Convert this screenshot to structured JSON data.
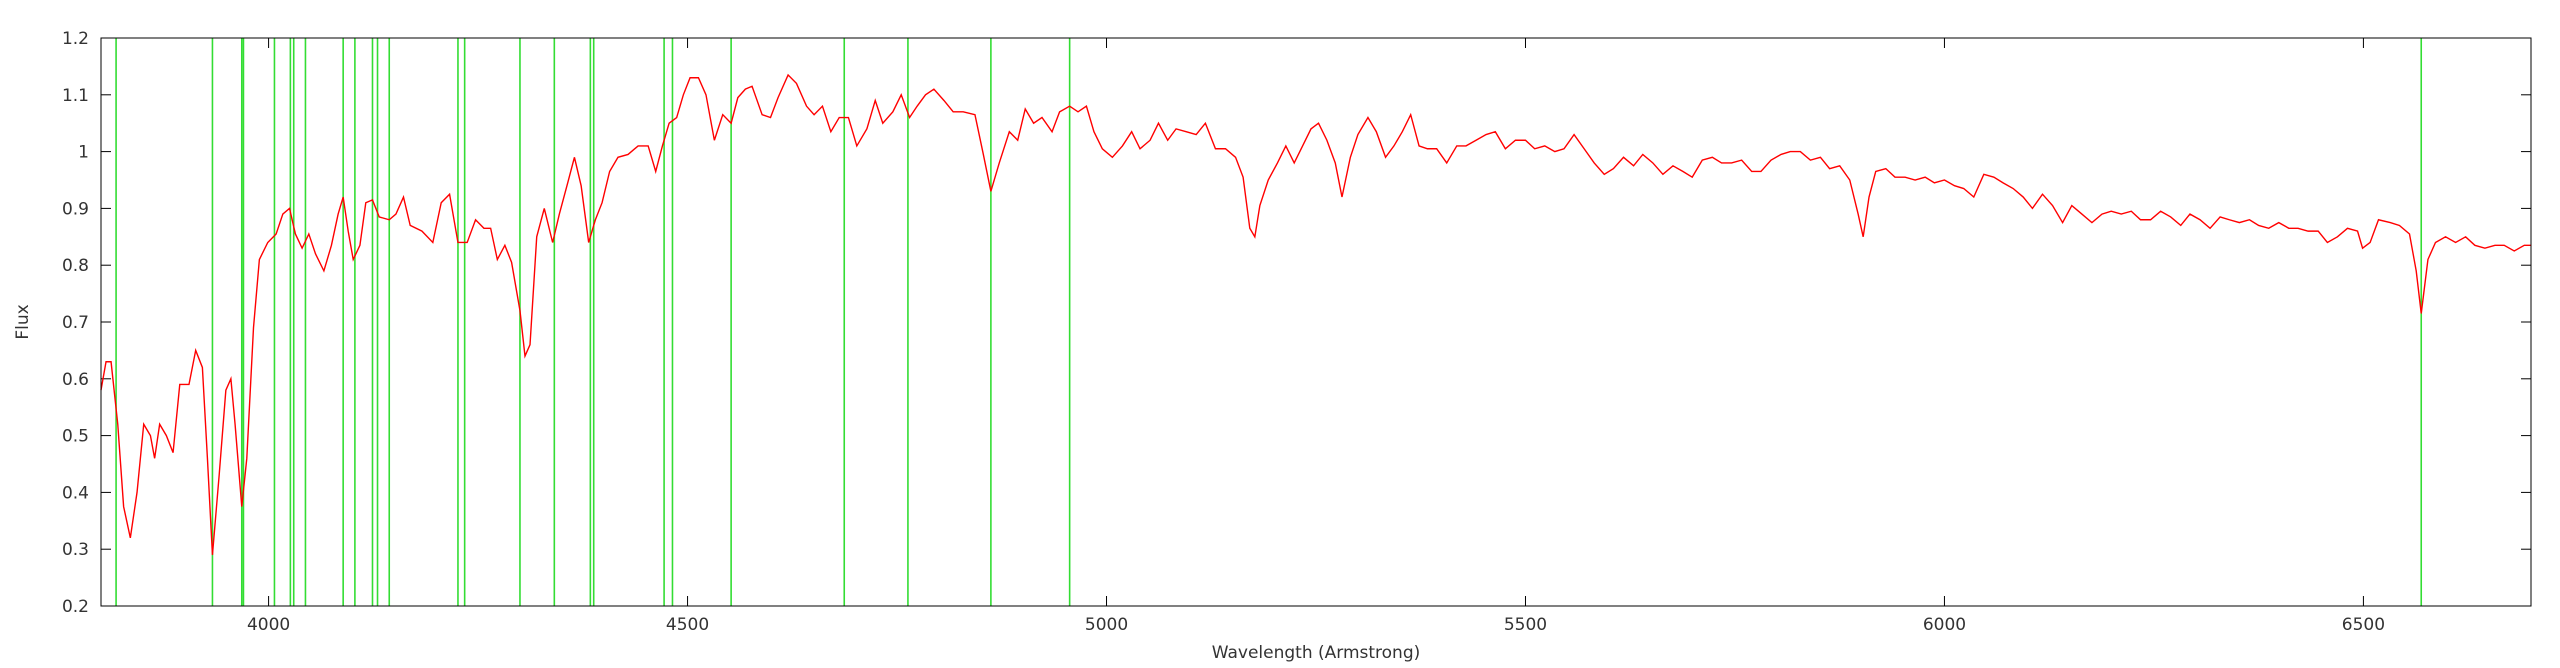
{
  "chart_data": {
    "type": "line",
    "xlabel": "Wavelength (Armstrong)",
    "ylabel": "Flux",
    "xlim": [
      3800,
      6700
    ],
    "ylim": [
      0.2,
      1.2
    ],
    "xticks": [
      4000,
      4500,
      5000,
      5500,
      6000,
      6500
    ],
    "yticks": [
      0.2,
      0.3,
      0.4,
      0.5,
      0.6,
      0.7,
      0.8,
      0.9,
      1,
      1.1,
      1.2
    ],
    "vlines": {
      "color": "#33dd33",
      "x": [
        3818,
        3933,
        3968,
        3970,
        4007,
        4026,
        4030,
        4044,
        4089,
        4103,
        4124,
        4130,
        4144,
        4226,
        4234,
        4300,
        4341,
        4384,
        4388,
        4472,
        4482,
        4552,
        4687,
        4763,
        4862,
        4956,
        6569
      ]
    },
    "x": [
      3800,
      3806,
      3812,
      3820,
      3827,
      3835,
      3843,
      3851,
      3859,
      3864,
      3870,
      3878,
      3886,
      3894,
      3905,
      3913,
      3921,
      3927,
      3933,
      3941,
      3949,
      3955,
      3960,
      3968,
      3974,
      3982,
      3989,
      3999,
      4009,
      4017,
      4025,
      4032,
      4040,
      4048,
      4056,
      4066,
      4075,
      4083,
      4089,
      4095,
      4101,
      4109,
      4116,
      4124,
      4132,
      4144,
      4152,
      4161,
      4169,
      4183,
      4196,
      4206,
      4216,
      4226,
      4237,
      4247,
      4257,
      4265,
      4273,
      4282,
      4290,
      4300,
      4306,
      4312,
      4320,
      4329,
      4339,
      4347,
      4357,
      4365,
      4373,
      4382,
      4390,
      4398,
      4407,
      4417,
      4429,
      4441,
      4453,
      4462,
      4470,
      4478,
      4487,
      4495,
      4503,
      4513,
      4522,
      4532,
      4542,
      4552,
      4560,
      4569,
      4577,
      4589,
      4599,
      4608,
      4620,
      4630,
      4642,
      4651,
      4661,
      4671,
      4681,
      4692,
      4702,
      4714,
      4724,
      4733,
      4745,
      4755,
      4765,
      4774,
      4784,
      4794,
      4806,
      4817,
      4829,
      4843,
      4853,
      4862,
      4872,
      4884,
      4894,
      4903,
      4913,
      4923,
      4935,
      4944,
      4956,
      4966,
      4976,
      4985,
      4995,
      5007,
      5019,
      5030,
      5040,
      5052,
      5062,
      5073,
      5083,
      5095,
      5107,
      5118,
      5130,
      5142,
      5154,
      5163,
      5171,
      5177,
      5183,
      5193,
      5204,
      5214,
      5224,
      5234,
      5244,
      5253,
      5263,
      5273,
      5281,
      5291,
      5300,
      5312,
      5322,
      5333,
      5343,
      5353,
      5363,
      5373,
      5383,
      5394,
      5406,
      5418,
      5429,
      5441,
      5453,
      5464,
      5476,
      5488,
      5500,
      5511,
      5523,
      5535,
      5546,
      5558,
      5570,
      5582,
      5594,
      5605,
      5617,
      5629,
      5640,
      5652,
      5664,
      5676,
      5688,
      5699,
      5711,
      5723,
      5734,
      5746,
      5758,
      5770,
      5781,
      5793,
      5805,
      5816,
      5828,
      5840,
      5852,
      5863,
      5875,
      5887,
      5897,
      5903,
      5910,
      5918,
      5930,
      5941,
      5953,
      5965,
      5977,
      5988,
      6000,
      6012,
      6023,
      6035,
      6047,
      6059,
      6070,
      6082,
      6094,
      6105,
      6117,
      6129,
      6141,
      6152,
      6164,
      6176,
      6188,
      6199,
      6211,
      6223,
      6234,
      6246,
      6258,
      6270,
      6282,
      6293,
      6305,
      6317,
      6329,
      6340,
      6352,
      6364,
      6375,
      6387,
      6399,
      6411,
      6422,
      6434,
      6446,
      6457,
      6469,
      6481,
      6493,
      6499,
      6508,
      6518,
      6532,
      6543,
      6555,
      6563,
      6569,
      6577,
      6586,
      6598,
      6610,
      6622,
      6633,
      6645,
      6657,
      6668,
      6680,
      6692,
      6700
    ],
    "series": [
      {
        "color": "#ff0000",
        "values": [
          0.58,
          0.63,
          0.63,
          0.52,
          0.375,
          0.32,
          0.4,
          0.52,
          0.5,
          0.46,
          0.52,
          0.5,
          0.47,
          0.59,
          0.59,
          0.65,
          0.62,
          0.46,
          0.29,
          0.43,
          0.58,
          0.6,
          0.52,
          0.375,
          0.46,
          0.69,
          0.81,
          0.84,
          0.855,
          0.89,
          0.9,
          0.855,
          0.83,
          0.855,
          0.82,
          0.79,
          0.835,
          0.89,
          0.92,
          0.86,
          0.81,
          0.835,
          0.91,
          0.915,
          0.885,
          0.88,
          0.89,
          0.92,
          0.87,
          0.86,
          0.84,
          0.91,
          0.925,
          0.84,
          0.84,
          0.88,
          0.865,
          0.865,
          0.81,
          0.835,
          0.805,
          0.72,
          0.64,
          0.66,
          0.85,
          0.9,
          0.84,
          0.89,
          0.945,
          0.99,
          0.94,
          0.84,
          0.88,
          0.91,
          0.965,
          0.99,
          0.995,
          1.01,
          1.01,
          0.965,
          1.01,
          1.05,
          1.06,
          1.1,
          1.13,
          1.13,
          1.1,
          1.02,
          1.065,
          1.05,
          1.095,
          1.11,
          1.115,
          1.065,
          1.06,
          1.095,
          1.135,
          1.12,
          1.08,
          1.065,
          1.08,
          1.035,
          1.06,
          1.06,
          1.01,
          1.04,
          1.09,
          1.05,
          1.07,
          1.1,
          1.06,
          1.08,
          1.1,
          1.11,
          1.09,
          1.07,
          1.07,
          1.065,
          0.995,
          0.93,
          0.98,
          1.035,
          1.02,
          1.075,
          1.05,
          1.06,
          1.035,
          1.07,
          1.08,
          1.07,
          1.08,
          1.035,
          1.005,
          0.99,
          1.01,
          1.035,
          1.005,
          1.02,
          1.05,
          1.02,
          1.04,
          1.035,
          1.03,
          1.05,
          1.005,
          1.005,
          0.99,
          0.955,
          0.865,
          0.85,
          0.905,
          0.95,
          0.98,
          1.01,
          0.98,
          1.01,
          1.04,
          1.05,
          1.02,
          0.98,
          0.92,
          0.99,
          1.03,
          1.06,
          1.035,
          0.99,
          1.01,
          1.035,
          1.065,
          1.01,
          1.005,
          1.005,
          0.98,
          1.01,
          1.01,
          1.02,
          1.03,
          1.035,
          1.005,
          1.02,
          1.02,
          1.005,
          1.01,
          1.0,
          1.005,
          1.03,
          1.005,
          0.98,
          0.96,
          0.97,
          0.99,
          0.975,
          0.995,
          0.98,
          0.96,
          0.975,
          0.965,
          0.955,
          0.985,
          0.99,
          0.98,
          0.98,
          0.985,
          0.965,
          0.965,
          0.985,
          0.995,
          1.0,
          1.0,
          0.985,
          0.99,
          0.97,
          0.975,
          0.95,
          0.89,
          0.85,
          0.92,
          0.965,
          0.97,
          0.955,
          0.955,
          0.95,
          0.955,
          0.945,
          0.95,
          0.94,
          0.935,
          0.92,
          0.96,
          0.955,
          0.945,
          0.935,
          0.92,
          0.9,
          0.925,
          0.905,
          0.875,
          0.905,
          0.89,
          0.875,
          0.89,
          0.895,
          0.89,
          0.895,
          0.88,
          0.88,
          0.895,
          0.885,
          0.87,
          0.89,
          0.88,
          0.865,
          0.885,
          0.88,
          0.875,
          0.88,
          0.87,
          0.865,
          0.875,
          0.865,
          0.865,
          0.86,
          0.86,
          0.84,
          0.85,
          0.865,
          0.86,
          0.83,
          0.84,
          0.88,
          0.875,
          0.87,
          0.855,
          0.79,
          0.715,
          0.81,
          0.84,
          0.85,
          0.84,
          0.85,
          0.835,
          0.83,
          0.835,
          0.835,
          0.825,
          0.835,
          0.835
        ]
      }
    ]
  }
}
